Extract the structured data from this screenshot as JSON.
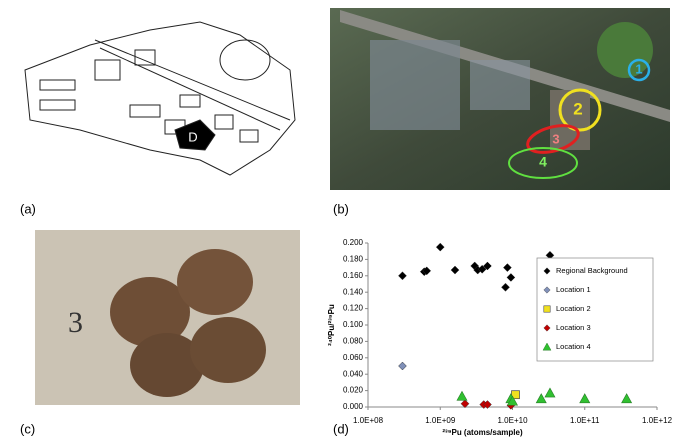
{
  "panels": {
    "a": {
      "label": "(a)",
      "marker": "D"
    },
    "b": {
      "label": "(b)",
      "sites": [
        "1",
        "2",
        "3",
        "4"
      ]
    },
    "c": {
      "label": "(c)",
      "sample": "3"
    },
    "d": {
      "label": "(d)"
    }
  },
  "chart_data": {
    "type": "scatter",
    "x_label": "²³⁹Pu (atoms/sample)",
    "y_label": "²⁴⁰Pu/²³⁹Pu",
    "xscale": "log",
    "legend": "upper right",
    "grid": false,
    "xlim": [
      100000000.0,
      1000000000000.0
    ],
    "xticks": [
      {
        "value": 100000000.0,
        "label": "1.0E+08"
      },
      {
        "value": 1000000000.0,
        "label": "1.0E+09"
      },
      {
        "value": 10000000000.0,
        "label": "1.0E+10"
      },
      {
        "value": 100000000000.0,
        "label": "1.0E+11"
      },
      {
        "value": 1000000000000.0,
        "label": "1.0E+12"
      }
    ],
    "ylim": [
      0,
      0.2
    ],
    "yticks": [
      {
        "value": 0,
        "label": "0.000"
      },
      {
        "value": 0.02,
        "label": "0.020"
      },
      {
        "value": 0.04,
        "label": "0.040"
      },
      {
        "value": 0.06,
        "label": "0.060"
      },
      {
        "value": 0.08,
        "label": "0.080"
      },
      {
        "value": 0.1,
        "label": "0.100"
      },
      {
        "value": 0.12,
        "label": "0.120"
      },
      {
        "value": 0.14,
        "label": "0.140"
      },
      {
        "value": 0.16,
        "label": "0.160"
      },
      {
        "value": 0.18,
        "label": "0.180"
      },
      {
        "value": 0.2,
        "label": "0.200"
      }
    ],
    "series": [
      {
        "name": "Regional Background",
        "color": "#000000",
        "marker": "diamond",
        "x": [
          300000000.0,
          600000000.0,
          650000000.0,
          1000000000.0,
          1600000000.0,
          3000000000.0,
          3300000000.0,
          3800000000.0,
          4500000000.0,
          8000000000.0,
          8500000000.0,
          9500000000.0,
          33000000000.0
        ],
        "values": [
          0.16,
          0.165,
          0.166,
          0.195,
          0.167,
          0.172,
          0.167,
          0.168,
          0.172,
          0.146,
          0.17,
          0.158,
          0.185
        ]
      },
      {
        "name": "Location 1",
        "color": "#8090b8",
        "marker": "diamond",
        "x": [
          300000000.0
        ],
        "values": [
          0.05
        ]
      },
      {
        "name": "Location 2",
        "color": "#f0e020",
        "marker": "square",
        "x": [
          11000000000.0
        ],
        "values": [
          0.015
        ]
      },
      {
        "name": "Location 3",
        "color": "#c00000",
        "marker": "diamond",
        "x": [
          2200000000.0,
          4000000000.0,
          4500000000.0,
          9500000000.0
        ],
        "values": [
          0.004,
          0.003,
          0.003,
          0.002
        ]
      },
      {
        "name": "Location 4",
        "color": "#30c030",
        "marker": "triangle",
        "x": [
          2000000000.0,
          9500000000.0,
          10000000000.0,
          25000000000.0,
          33000000000.0,
          100000000000.0,
          380000000000.0
        ],
        "values": [
          0.013,
          0.01,
          0.007,
          0.01,
          0.017,
          0.01,
          0.01
        ]
      }
    ]
  }
}
